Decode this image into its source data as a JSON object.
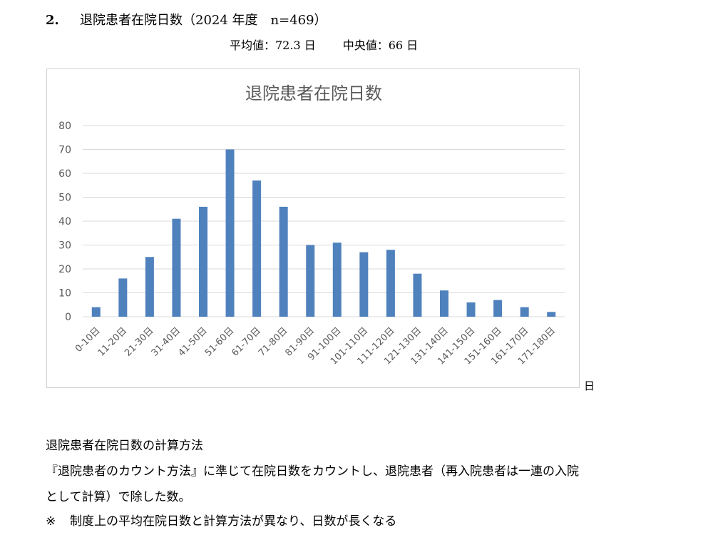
{
  "heading": {
    "number": "2.",
    "text": "退院患者在院日数（2024 年度　n=469）"
  },
  "stats": {
    "mean": "平均値：72.3 日",
    "median": "中央値：66 日"
  },
  "chart_data": {
    "type": "bar",
    "title": "退院患者在院日数",
    "categories": [
      "0-10日",
      "11-20日",
      "21-30日",
      "31-40日",
      "41-50日",
      "51-60日",
      "61-70日",
      "71-80日",
      "81-90日",
      "91-100日",
      "101-110日",
      "111-120日",
      "121-130日",
      "131-140日",
      "141-150日",
      "151-160日",
      "161-170日",
      "171-180日"
    ],
    "values": [
      4,
      16,
      25,
      41,
      46,
      70,
      57,
      46,
      30,
      31,
      27,
      28,
      18,
      11,
      6,
      7,
      4,
      2
    ],
    "yticks": [
      0,
      10,
      20,
      30,
      40,
      50,
      60,
      70,
      80
    ],
    "ylim": [
      0,
      80
    ],
    "grid": true,
    "legend": "none",
    "bar_color": "#4f81bd",
    "grid_color": "#d9d9d9"
  },
  "unit_label": "日",
  "method": {
    "title": "退院患者在院日数の計算方法",
    "line1": "『退院患者のカウント方法』に準じて在院日数をカウントし、退院患者（再入院患者は一連の入院",
    "line2": "として計算）で除した数。",
    "note_mark": "※",
    "note_text": "制度上の平均在院日数と計算方法が異なり、日数が長くなる"
  }
}
